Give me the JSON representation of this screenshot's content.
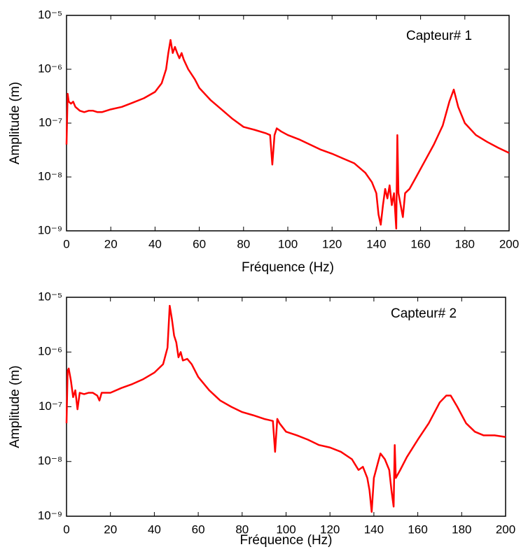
{
  "chart_data": [
    {
      "type": "line",
      "annotation": "Capteur# 1",
      "x_label": "Fréquence (Hz)",
      "y_label": "Amplitude (m)",
      "log_y": true,
      "xlim": [
        0,
        200
      ],
      "xticks": [
        0,
        20,
        40,
        60,
        80,
        100,
        120,
        140,
        160,
        180,
        200
      ],
      "ylim": [
        1e-09,
        1e-05
      ],
      "yticks": [
        {
          "value": 1e-09,
          "label": "10⁻⁹"
        },
        {
          "value": 1e-08,
          "label": "10⁻⁸"
        },
        {
          "value": 1e-07,
          "label": "10⁻⁷"
        },
        {
          "value": 1e-06,
          "label": "10⁻⁶"
        },
        {
          "value": 1e-05,
          "label": "10⁻⁵"
        }
      ],
      "series": [
        {
          "color": "#ff0000",
          "x": [
            0,
            0.5,
            1,
            2,
            3,
            4,
            6,
            8,
            10,
            12,
            14,
            16,
            18,
            20,
            25,
            30,
            35,
            40,
            43,
            45,
            46,
            47,
            48,
            49,
            50,
            51,
            52,
            53,
            55,
            58,
            60,
            65,
            70,
            75,
            80,
            85,
            90,
            92,
            93,
            94,
            95,
            97,
            100,
            105,
            110,
            115,
            120,
            125,
            130,
            135,
            138,
            140,
            141,
            142,
            143,
            144,
            145,
            146,
            147,
            148,
            149,
            149.5,
            150,
            151,
            152,
            153,
            155,
            158,
            162,
            166,
            170,
            173,
            175,
            177,
            180,
            185,
            190,
            195,
            200
          ],
          "values": [
            4e-08,
            3.5e-07,
            2.5e-07,
            2.3e-07,
            2.5e-07,
            2e-07,
            1.7e-07,
            1.6e-07,
            1.7e-07,
            1.7e-07,
            1.6e-07,
            1.6e-07,
            1.7e-07,
            1.8e-07,
            2e-07,
            2.4e-07,
            2.9e-07,
            3.8e-07,
            5.5e-07,
            1e-06,
            2e-06,
            3.5e-06,
            2e-06,
            2.6e-06,
            2e-06,
            1.6e-06,
            2e-06,
            1.5e-06,
            1e-06,
            6.5e-07,
            4.5e-07,
            2.7e-07,
            1.8e-07,
            1.2e-07,
            8.5e-08,
            7.5e-08,
            6.5e-08,
            6e-08,
            1.7e-08,
            6e-08,
            8e-08,
            7e-08,
            6e-08,
            5e-08,
            4e-08,
            3.2e-08,
            2.7e-08,
            2.2e-08,
            1.8e-08,
            1.2e-08,
            8e-09,
            5e-09,
            2e-09,
            1.3e-09,
            3e-09,
            6e-09,
            4e-09,
            7e-09,
            3e-09,
            5e-09,
            1.1e-09,
            6e-08,
            5e-09,
            3e-09,
            1.8e-09,
            5e-09,
            6e-09,
            1e-08,
            2e-08,
            4e-08,
            9e-08,
            2.5e-07,
            4.2e-07,
            2e-07,
            1e-07,
            6e-08,
            4.5e-08,
            3.5e-08,
            2.8e-08
          ]
        }
      ]
    },
    {
      "type": "line",
      "annotation": "Capteur# 2",
      "x_label": "Fréquence (Hz)",
      "y_label": "Amplitude (m)",
      "log_y": true,
      "xlim": [
        0,
        200
      ],
      "xticks": [
        0,
        20,
        40,
        60,
        80,
        100,
        120,
        140,
        160,
        180,
        200
      ],
      "ylim": [
        1e-09,
        1e-05
      ],
      "yticks": [
        {
          "value": 1e-09,
          "label": "10⁻⁹"
        },
        {
          "value": 1e-08,
          "label": "10⁻⁸"
        },
        {
          "value": 1e-07,
          "label": "10⁻⁷"
        },
        {
          "value": 1e-06,
          "label": "10⁻⁶"
        },
        {
          "value": 1e-05,
          "label": "10⁻⁵"
        }
      ],
      "series": [
        {
          "color": "#ff0000",
          "x": [
            0,
            0.5,
            1,
            2,
            3,
            4,
            5,
            6,
            8,
            10,
            12,
            14,
            15,
            16,
            20,
            25,
            30,
            35,
            40,
            44,
            46,
            47,
            48,
            49,
            50,
            51,
            52,
            53,
            55,
            57,
            60,
            65,
            70,
            75,
            80,
            85,
            90,
            94,
            95,
            96,
            97,
            100,
            105,
            110,
            115,
            120,
            125,
            130,
            133,
            135,
            137,
            138,
            139,
            140,
            142,
            143,
            145,
            147,
            148,
            149,
            149.5,
            150,
            152,
            155,
            160,
            165,
            170,
            173,
            175,
            178,
            182,
            186,
            190,
            195,
            200
          ],
          "values": [
            5e-08,
            4.5e-07,
            5e-07,
            3e-07,
            1.5e-07,
            2e-07,
            9e-08,
            1.8e-07,
            1.7e-07,
            1.8e-07,
            1.8e-07,
            1.6e-07,
            1.3e-07,
            1.8e-07,
            1.8e-07,
            2.2e-07,
            2.6e-07,
            3.2e-07,
            4.2e-07,
            6e-07,
            1.2e-06,
            7e-06,
            4e-06,
            2e-06,
            1.5e-06,
            8e-07,
            1e-06,
            7e-07,
            7.5e-07,
            6e-07,
            3.5e-07,
            2e-07,
            1.3e-07,
            1e-07,
            8e-08,
            7e-08,
            6e-08,
            5.5e-08,
            1.5e-08,
            6e-08,
            5e-08,
            3.5e-08,
            3e-08,
            2.5e-08,
            2e-08,
            1.8e-08,
            1.5e-08,
            1.1e-08,
            7e-09,
            8e-09,
            5e-09,
            3e-09,
            1.2e-09,
            5e-09,
            1e-08,
            1.4e-08,
            1.1e-08,
            7e-09,
            3e-09,
            1.5e-09,
            2e-08,
            5e-09,
            7e-09,
            1.2e-08,
            2.5e-08,
            5e-08,
            1.2e-07,
            1.6e-07,
            1.6e-07,
            1e-07,
            5e-08,
            3.5e-08,
            3e-08,
            3e-08,
            2.8e-08
          ]
        }
      ]
    }
  ]
}
